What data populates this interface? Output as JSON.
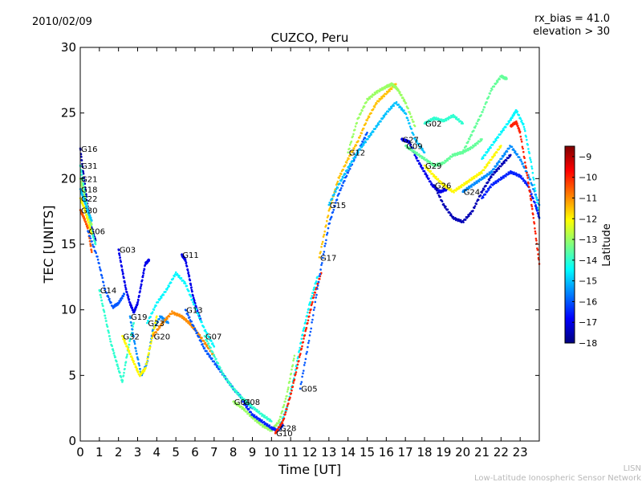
{
  "header": {
    "date": "2010/02/09",
    "rx_bias": "rx_bias = 41.0",
    "elevation": "elevation > 30"
  },
  "footer": {
    "org_short": "LISN",
    "org_full": "Low-Latitude Ionospheric Sensor Network"
  },
  "colorbar": {
    "label": "Latitude",
    "min": -18,
    "max": -8.5,
    "ticks": [
      -9,
      -10,
      -11,
      -12,
      -13,
      -14,
      -15,
      -16,
      -17,
      -18
    ],
    "tick_labels": [
      "−9",
      "−10",
      "−11",
      "−12",
      "−13",
      "−14",
      "−15",
      "−16",
      "−17",
      "−18"
    ],
    "colormap": [
      "#00007f",
      "#0000ff",
      "#007fff",
      "#00ffff",
      "#7fff7f",
      "#ffff00",
      "#ff7f00",
      "#ff0000",
      "#7f0000"
    ]
  },
  "chart_data": {
    "type": "scatter",
    "title": "CUZCO, Peru",
    "xlabel": "Time [UT]",
    "ylabel": "TEC [UNITS]",
    "xlim": [
      0,
      24
    ],
    "ylim": [
      0,
      30
    ],
    "xticks": [
      0,
      1,
      2,
      3,
      4,
      5,
      6,
      7,
      8,
      9,
      10,
      11,
      12,
      13,
      14,
      15,
      16,
      17,
      18,
      19,
      20,
      21,
      22,
      23
    ],
    "yticks": [
      0,
      5,
      10,
      15,
      20,
      25,
      30
    ],
    "series": [
      {
        "name": "G16",
        "lat": -17.5,
        "x": [
          0.0,
          0.2,
          0.4,
          0.6,
          0.8
        ],
        "y": [
          22.3,
          20.0,
          17.8,
          16.2,
          15.3
        ]
      },
      {
        "name": "G31",
        "lat": -14.0,
        "x": [
          0.0,
          0.2,
          0.4,
          0.6,
          0.8
        ],
        "y": [
          21.0,
          19.2,
          17.5,
          16.0,
          15.0
        ]
      },
      {
        "name": "G21",
        "lat": -13.0,
        "x": [
          0.0,
          0.2,
          0.4,
          0.6
        ],
        "y": [
          20.0,
          18.8,
          17.5,
          16.5
        ]
      },
      {
        "name": "G18",
        "lat": -15.0,
        "x": [
          0.0,
          0.2,
          0.4,
          0.6
        ],
        "y": [
          19.2,
          18.4,
          17.5,
          16.8
        ]
      },
      {
        "name": "G22",
        "lat": -12.0,
        "x": [
          0.0,
          0.2,
          0.4,
          0.6
        ],
        "y": [
          18.5,
          17.8,
          16.8,
          15.8
        ]
      },
      {
        "name": "G30",
        "lat": -10.5,
        "x": [
          0.0,
          0.2,
          0.4,
          0.6
        ],
        "y": [
          17.6,
          17.0,
          16.2,
          14.4
        ]
      },
      {
        "name": "G06",
        "lat": -16.0,
        "x": [
          0.4,
          0.9,
          1.3,
          1.7,
          2.0,
          2.3
        ],
        "y": [
          16.0,
          14.0,
          11.5,
          10.2,
          10.5,
          11.2
        ]
      },
      {
        "name": "G03",
        "lat": -17.0,
        "x": [
          2.0,
          2.2,
          2.4,
          2.6,
          2.8,
          3.0,
          3.2,
          3.4,
          3.6
        ],
        "y": [
          14.6,
          13.0,
          11.5,
          10.5,
          9.8,
          10.5,
          12.0,
          13.5,
          13.8
        ]
      },
      {
        "name": "G14",
        "lat": -14.0,
        "x": [
          1.0,
          1.3,
          1.6,
          1.9,
          2.2,
          2.5,
          2.8
        ],
        "y": [
          11.5,
          9.5,
          7.5,
          6.0,
          4.5,
          7.0,
          9.0
        ]
      },
      {
        "name": "G19",
        "lat": -15.5,
        "x": [
          2.6,
          2.9,
          3.2,
          3.5,
          3.8,
          4.2,
          4.6
        ],
        "y": [
          9.5,
          7.0,
          5.0,
          6.0,
          8.5,
          9.5,
          9.0
        ]
      },
      {
        "name": "G32",
        "lat": -12.0,
        "x": [
          2.2,
          2.5,
          2.8,
          3.1,
          3.4,
          3.7,
          4.0
        ],
        "y": [
          8.0,
          7.0,
          6.0,
          5.0,
          5.5,
          7.5,
          9.5
        ]
      },
      {
        "name": "G11",
        "lat": -17.0,
        "x": [
          5.3,
          5.5,
          5.7,
          5.9,
          6.1,
          6.3
        ],
        "y": [
          14.2,
          13.8,
          12.5,
          11.0,
          10.0,
          9.2
        ]
      },
      {
        "name": "G23",
        "lat": -14.5,
        "x": [
          3.5,
          4.0,
          4.5,
          5.0,
          5.5,
          6.0,
          6.5,
          7.0
        ],
        "y": [
          9.0,
          10.5,
          11.5,
          12.8,
          12.0,
          10.2,
          8.5,
          7.2
        ]
      },
      {
        "name": "G20",
        "lat": -11.0,
        "x": [
          3.8,
          4.3,
          4.8,
          5.3,
          5.7,
          6.0,
          6.5,
          7.0
        ],
        "y": [
          8.0,
          9.0,
          9.8,
          9.5,
          9.0,
          8.5,
          7.5,
          6.5
        ]
      },
      {
        "name": "G13",
        "lat": -16.0,
        "x": [
          5.5,
          6.0,
          6.5,
          7.0,
          7.5,
          8.0,
          8.5,
          9.0
        ],
        "y": [
          10.0,
          8.5,
          7.0,
          6.0,
          5.0,
          4.0,
          3.2,
          2.5
        ]
      },
      {
        "name": "G07",
        "lat": -14.0,
        "x": [
          6.5,
          7.0,
          7.5,
          8.0,
          8.5,
          9.0,
          9.5,
          10.0
        ],
        "y": [
          8.0,
          6.5,
          5.0,
          4.0,
          3.2,
          2.6,
          2.0,
          1.5
        ]
      },
      {
        "name": "G04",
        "lat": -13.0,
        "x": [
          8.0,
          8.5,
          9.0,
          9.5,
          10.0,
          10.4,
          10.8,
          11.2
        ],
        "y": [
          3.0,
          2.5,
          1.8,
          1.2,
          0.8,
          1.5,
          3.5,
          6.5
        ]
      },
      {
        "name": "G08",
        "lat": -16.5,
        "x": [
          8.5,
          9.0,
          9.5,
          10.0,
          10.3,
          10.6
        ],
        "y": [
          3.0,
          2.0,
          1.5,
          1.0,
          0.8,
          1.2
        ]
      },
      {
        "name": "G28",
        "lat": -14.5,
        "x": [
          10.4,
          10.8,
          11.2,
          11.6,
          12.0,
          12.4
        ],
        "y": [
          1.0,
          2.5,
          5.0,
          8.0,
          10.5,
          12.5
        ]
      },
      {
        "name": "G10",
        "lat": -10.0,
        "x": [
          10.2,
          10.6,
          11.0,
          11.4,
          11.8,
          12.2,
          12.6
        ],
        "y": [
          0.6,
          1.5,
          3.5,
          6.0,
          8.5,
          11.0,
          12.8
        ]
      },
      {
        "name": "G05",
        "lat": -16.0,
        "x": [
          11.5,
          12.0,
          12.5,
          13.0,
          13.5,
          14.0,
          14.5,
          15.0
        ],
        "y": [
          4.0,
          8.0,
          12.5,
          16.5,
          18.8,
          20.5,
          22.0,
          23.5
        ]
      },
      {
        "name": "G17",
        "lat": -11.5,
        "x": [
          12.5,
          13.0,
          13.5,
          14.0,
          14.5,
          15.0,
          15.5,
          16.0,
          16.5
        ],
        "y": [
          14.0,
          17.5,
          20.0,
          21.5,
          22.8,
          24.5,
          25.8,
          26.5,
          27.2
        ]
      },
      {
        "name": "G15",
        "lat": -15.0,
        "x": [
          13.0,
          13.5,
          14.0,
          14.5,
          15.0,
          15.5,
          16.0,
          16.5,
          17.0,
          17.5,
          18.0
        ],
        "y": [
          18.0,
          19.5,
          20.8,
          22.0,
          23.0,
          24.0,
          25.0,
          25.8,
          25.0,
          23.0,
          22.0
        ]
      },
      {
        "name": "G12",
        "lat": -13.0,
        "x": [
          14.0,
          14.5,
          15.0,
          15.5,
          16.0,
          16.3,
          16.6,
          17.0,
          17.5
        ],
        "y": [
          22.0,
          24.5,
          26.0,
          26.6,
          27.0,
          27.2,
          26.8,
          25.8,
          24.0
        ]
      },
      {
        "name": "G02",
        "lat": -14.0,
        "x": [
          18.0,
          18.5,
          19.0,
          19.5,
          20.0
        ],
        "y": [
          24.2,
          24.6,
          24.4,
          24.8,
          24.2
        ]
      },
      {
        "name": "G27",
        "lat": -17.0,
        "x": [
          16.8,
          17.2,
          17.6,
          18.0,
          18.4,
          18.8,
          19.2
        ],
        "y": [
          23.0,
          22.8,
          21.5,
          20.5,
          19.5,
          19.0,
          19.2
        ]
      },
      {
        "name": "G09",
        "lat": -13.5,
        "x": [
          17.0,
          17.5,
          18.0,
          18.5,
          19.0,
          19.5,
          20.0,
          20.5,
          21.0
        ],
        "y": [
          22.5,
          22.0,
          21.5,
          21.0,
          21.2,
          21.8,
          22.0,
          22.4,
          23.0
        ]
      },
      {
        "name": "G29",
        "lat": -12.0,
        "x": [
          18.0,
          18.5,
          19.0,
          19.5,
          20.0,
          20.5,
          21.0,
          21.5,
          22.0
        ],
        "y": [
          21.0,
          20.2,
          19.5,
          19.0,
          19.5,
          20.0,
          20.5,
          21.5,
          22.5
        ]
      },
      {
        "name": "G26",
        "lat": -17.5,
        "x": [
          18.5,
          19.0,
          19.5,
          20.0,
          20.5,
          21.0,
          21.5,
          22.0,
          22.5
        ],
        "y": [
          19.5,
          18.0,
          17.0,
          16.7,
          17.5,
          19.0,
          20.2,
          21.0,
          21.8
        ]
      },
      {
        "name": "G24",
        "lat": -15.5,
        "x": [
          20.0,
          20.5,
          21.0,
          21.5,
          22.0,
          22.5,
          23.0,
          23.5,
          24.0
        ],
        "y": [
          19.0,
          19.5,
          20.0,
          20.5,
          21.5,
          22.5,
          21.5,
          20.0,
          18.0
        ]
      },
      {
        "name": "",
        "lat": -13.5,
        "x": [
          20.0,
          20.5,
          21.0,
          21.5,
          22.0,
          22.3
        ],
        "y": [
          22.0,
          23.5,
          25.0,
          26.8,
          27.8,
          27.6
        ]
      },
      {
        "name": "",
        "lat": -14.5,
        "x": [
          21.0,
          21.5,
          22.0,
          22.5,
          22.8,
          23.2,
          23.6,
          24.0
        ],
        "y": [
          21.5,
          22.5,
          23.5,
          24.5,
          25.2,
          24.0,
          21.0,
          17.0
        ]
      },
      {
        "name": "",
        "lat": -16.5,
        "x": [
          21.0,
          21.5,
          22.0,
          22.5,
          23.0,
          23.4,
          23.8,
          24.0
        ],
        "y": [
          18.5,
          19.5,
          20.0,
          20.5,
          20.2,
          19.5,
          18.0,
          17.0
        ]
      },
      {
        "name": "",
        "lat": -10.0,
        "x": [
          22.5,
          22.8,
          23.0,
          23.4,
          23.7,
          24.0
        ],
        "y": [
          24.0,
          24.3,
          23.5,
          20.0,
          17.0,
          13.5
        ]
      }
    ]
  }
}
